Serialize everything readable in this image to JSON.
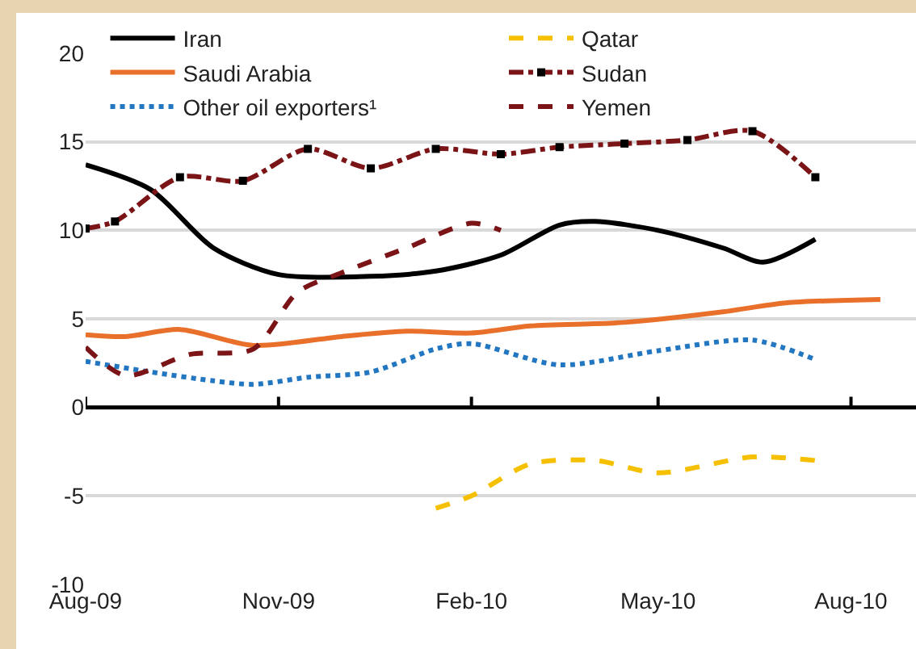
{
  "chart_data": {
    "type": "line",
    "xlim": [
      "2009-08-01",
      "2010-09-01"
    ],
    "xticks": [
      {
        "value": "2009-08-01",
        "label": "Aug-09"
      },
      {
        "value": "2009-11-01",
        "label": "Nov-09"
      },
      {
        "value": "2010-02-01",
        "label": "Feb-10"
      },
      {
        "value": "2010-05-01",
        "label": "May-10"
      },
      {
        "value": "2010-08-01",
        "label": "Aug-10"
      }
    ],
    "ylim": [
      -10,
      20
    ],
    "yticks": [
      -10,
      -5,
      0,
      5,
      10,
      15,
      20
    ],
    "grid": "y",
    "legend": "top",
    "marker": "none",
    "series": [
      {
        "name": "Iran",
        "color": "#000000",
        "line_style": "solid",
        "x": [
          "2009-08-01",
          "2009-09-01",
          "2009-10-01",
          "2009-11-01",
          "2009-12-15",
          "2010-01-15",
          "2010-02-15",
          "2010-03-15",
          "2010-04-01",
          "2010-05-01",
          "2010-06-01",
          "2010-06-20",
          "2010-07-15"
        ],
        "values": [
          13.7,
          12.3,
          9.0,
          7.5,
          7.4,
          7.7,
          8.6,
          10.3,
          10.5,
          10.0,
          9.0,
          8.2,
          9.5
        ]
      },
      {
        "name": "Qatar",
        "color": "#f5c000",
        "line_style": "dashed",
        "x": [
          "2010-01-15",
          "2010-02-01",
          "2010-03-01",
          "2010-04-01",
          "2010-05-01",
          "2010-06-15",
          "2010-07-15"
        ],
        "values": [
          -5.7,
          -5.0,
          -3.2,
          -3.0,
          -3.7,
          -2.8,
          -3.0
        ]
      },
      {
        "name": "Saudi Arabia",
        "color": "#e8702a",
        "line_style": "solid",
        "x": [
          "2009-08-01",
          "2009-08-20",
          "2009-09-15",
          "2009-10-20",
          "2009-12-01",
          "2010-01-01",
          "2010-02-01",
          "2010-03-01",
          "2010-04-15",
          "2010-06-01",
          "2010-07-01",
          "2010-08-15"
        ],
        "values": [
          4.1,
          4.0,
          4.4,
          3.5,
          4.0,
          4.3,
          4.2,
          4.6,
          4.8,
          5.4,
          5.9,
          6.1
        ]
      },
      {
        "name": "Sudan",
        "color": "#7b1416",
        "line_style": "dashdot",
        "marker": "square",
        "x": [
          "2009-08-01",
          "2009-08-15",
          "2009-09-15",
          "2009-10-15",
          "2009-11-15",
          "2009-12-15",
          "2010-01-15",
          "2010-02-15",
          "2010-03-15",
          "2010-04-15",
          "2010-05-15",
          "2010-06-15",
          "2010-07-15"
        ],
        "values": [
          10.1,
          10.5,
          13.0,
          12.8,
          14.6,
          13.5,
          14.6,
          14.3,
          14.7,
          14.9,
          15.1,
          15.6,
          13.0
        ]
      },
      {
        "name": "Other oil exporters¹",
        "color": "#2277c0",
        "line_style": "dotted",
        "x": [
          "2009-08-01",
          "2009-09-01",
          "2009-10-01",
          "2009-10-20",
          "2009-11-15",
          "2009-12-15",
          "2010-01-15",
          "2010-02-01",
          "2010-03-15",
          "2010-05-01",
          "2010-06-15",
          "2010-07-15"
        ],
        "values": [
          2.6,
          2.0,
          1.5,
          1.3,
          1.7,
          2.0,
          3.3,
          3.6,
          2.4,
          3.2,
          3.8,
          2.7
        ]
      },
      {
        "name": "Yemen",
        "color": "#7b1416",
        "line_style": "dashed",
        "x": [
          "2009-08-01",
          "2009-08-20",
          "2009-09-20",
          "2009-10-20",
          "2009-11-10",
          "2009-12-01",
          "2010-01-01",
          "2010-02-01",
          "2010-02-15"
        ],
        "values": [
          3.4,
          1.8,
          3.0,
          3.3,
          6.5,
          7.6,
          9.0,
          10.4,
          10.0
        ]
      }
    ]
  }
}
